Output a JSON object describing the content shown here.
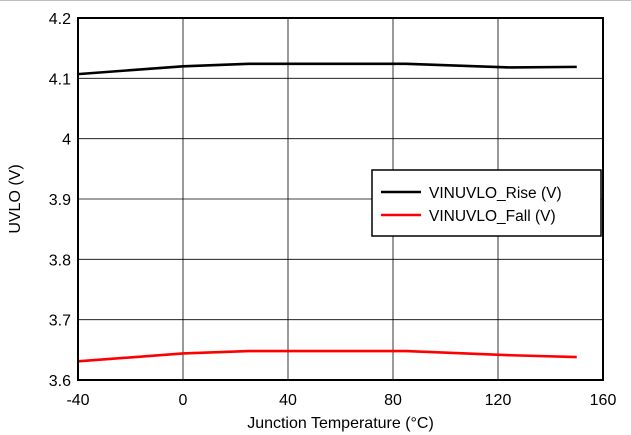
{
  "chart_data": {
    "type": "line",
    "title": "",
    "xlabel": "Junction Temperature (°C)",
    "ylabel": "UVLO (V)",
    "xlim": [
      -40,
      160
    ],
    "ylim": [
      3.6,
      4.2
    ],
    "x_ticks": [
      -40,
      0,
      40,
      80,
      120,
      160
    ],
    "x_tick_labels": [
      "-40",
      "0",
      "40",
      "80",
      "120",
      "160"
    ],
    "y_ticks": [
      3.6,
      3.7,
      3.8,
      3.9,
      4.0,
      4.1,
      4.2
    ],
    "y_tick_labels": [
      "3.6",
      "3.7",
      "3.8",
      "3.9",
      "4",
      "4.1",
      "4.2"
    ],
    "grid": true,
    "legend_position": "right",
    "series": [
      {
        "name": "VINUVLO_Rise (V)",
        "color": "#000000",
        "x": [
          -40,
          0,
          25,
          85,
          125,
          150
        ],
        "values": [
          4.107,
          4.12,
          4.124,
          4.124,
          4.118,
          4.119
        ]
      },
      {
        "name": "VINUVLO_Fall (V)",
        "color": "#ff0000",
        "x": [
          -40,
          0,
          25,
          85,
          125,
          150
        ],
        "values": [
          3.631,
          3.644,
          3.648,
          3.648,
          3.641,
          3.638
        ]
      }
    ]
  }
}
